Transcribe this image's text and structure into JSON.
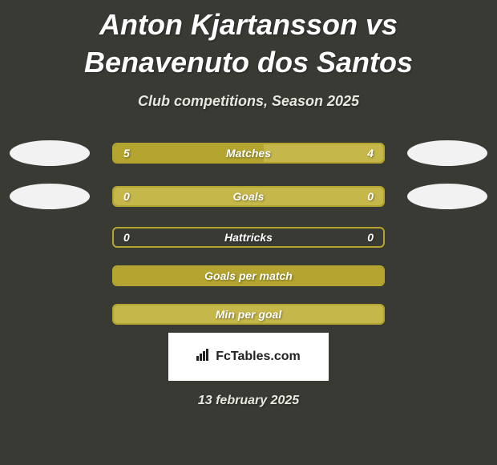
{
  "title": "Anton Kjartansson vs Benavenuto dos Santos",
  "subtitle": "Club competitions, Season 2025",
  "colors": {
    "background": "#3a3a35",
    "oval": "#f2f2f2",
    "bar_border": "#b3a52f",
    "bar_fill_primary": "#b3a52f",
    "bar_fill_secondary": "#c5b74a",
    "text": "#ffffff"
  },
  "stats": [
    {
      "label": "Matches",
      "left_value": "5",
      "right_value": "4",
      "left_pct": 55.6,
      "right_pct": 44.4,
      "show_ovals": true,
      "left_fill": "#b3a52f",
      "right_fill": "#c5b74a"
    },
    {
      "label": "Goals",
      "left_value": "0",
      "right_value": "0",
      "left_pct": 100,
      "right_pct": 0,
      "show_ovals": true,
      "left_fill": "#c5b74a",
      "right_fill": "#c5b74a"
    },
    {
      "label": "Hattricks",
      "left_value": "0",
      "right_value": "0",
      "left_pct": 0,
      "right_pct": 0,
      "show_ovals": false,
      "left_fill": "#b3a52f",
      "right_fill": "#b3a52f"
    },
    {
      "label": "Goals per match",
      "left_value": "",
      "right_value": "",
      "left_pct": 100,
      "right_pct": 0,
      "show_ovals": false,
      "left_fill": "#b3a52f",
      "right_fill": "#b3a52f"
    },
    {
      "label": "Min per goal",
      "left_value": "",
      "right_value": "",
      "left_pct": 100,
      "right_pct": 0,
      "show_ovals": false,
      "left_fill": "#c5b74a",
      "right_fill": "#c5b74a"
    }
  ],
  "logo": {
    "text": "FcTables.com",
    "icon": "chart-icon"
  },
  "footer_date": "13 february 2025"
}
